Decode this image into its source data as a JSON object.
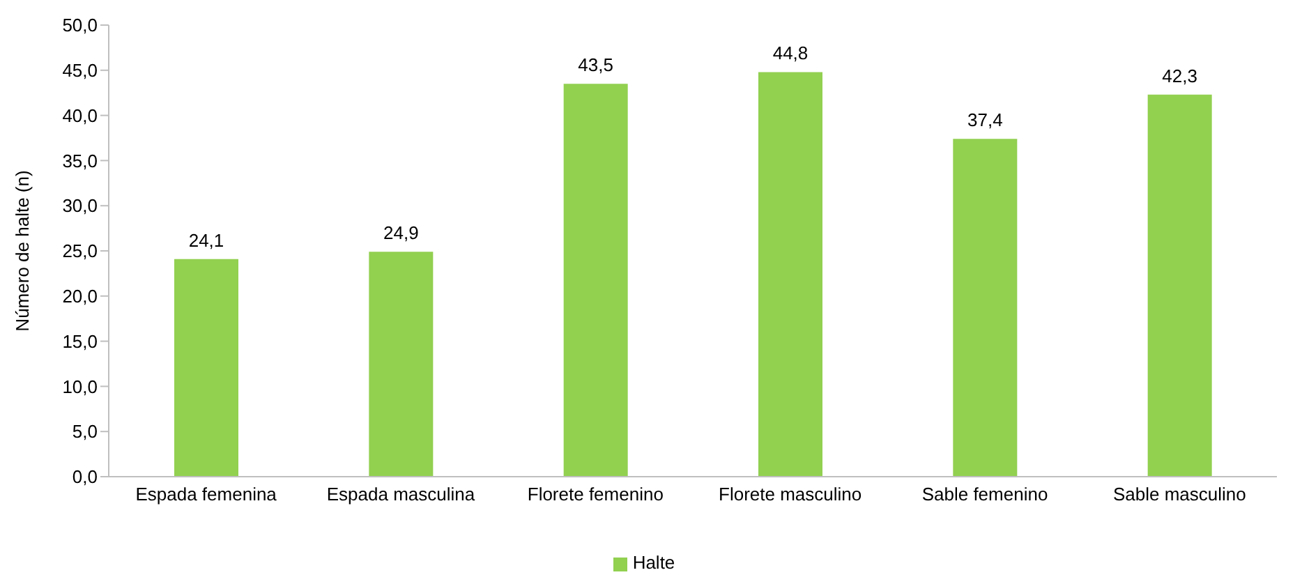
{
  "chart_data": {
    "type": "bar",
    "ylabel": "Número de halte (n)",
    "categories": [
      "Espada femenina",
      "Espada masculina",
      "Florete femenino",
      "Florete masculino",
      "Sable femenino",
      "Sable masculino"
    ],
    "series": [
      {
        "name": "Halte",
        "color": "#92d050",
        "values": [
          24.1,
          24.9,
          43.5,
          44.8,
          37.4,
          42.3
        ],
        "value_labels": [
          "24,1",
          "24,9",
          "43,5",
          "44,8",
          "37,4",
          "42,3"
        ]
      }
    ],
    "ylim": [
      0,
      50
    ],
    "yticks": [
      {
        "value": 0,
        "label": "0,0"
      },
      {
        "value": 5,
        "label": "5,0"
      },
      {
        "value": 10,
        "label": "10,0"
      },
      {
        "value": 15,
        "label": "15,0"
      },
      {
        "value": 20,
        "label": "20,0"
      },
      {
        "value": 25,
        "label": "25,0"
      },
      {
        "value": 30,
        "label": "30,0"
      },
      {
        "value": 35,
        "label": "35,0"
      },
      {
        "value": 40,
        "label": "40,0"
      },
      {
        "value": 45,
        "label": "45,0"
      },
      {
        "value": 50,
        "label": "50,0"
      }
    ],
    "grid": false,
    "legend": "bottom"
  }
}
